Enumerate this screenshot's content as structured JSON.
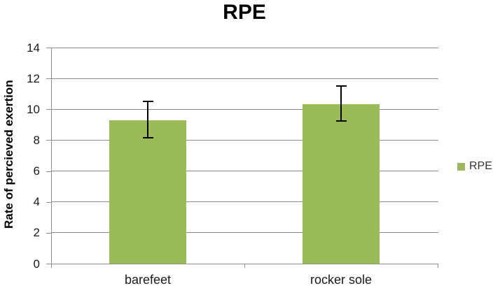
{
  "chart_data": {
    "type": "bar",
    "title": "RPE",
    "ylabel": "Rate of percieved exertion",
    "xlabel": "",
    "categories": [
      "barefeet",
      "rocker sole"
    ],
    "series": [
      {
        "name": "RPE",
        "values": [
          9.3,
          10.35
        ],
        "error_low": [
          8.1,
          9.2
        ],
        "error_high": [
          10.55,
          11.55
        ]
      }
    ],
    "ylim": [
      0,
      14
    ],
    "ytick_step": 2,
    "ytick_labels": [
      "0",
      "2",
      "4",
      "6",
      "8",
      "10",
      "12",
      "14"
    ],
    "grid": "horizontal-only",
    "legend": {
      "position": "right",
      "entries": [
        {
          "label": "RPE",
          "swatch_color": "#9BBB59"
        }
      ]
    },
    "colors": {
      "bar": "#9BBB59",
      "gridline": "#8E8E8E",
      "axis": "#8E8E8E",
      "error_bar": "#000000",
      "title_text": "#000000",
      "tick_text": "#1a1a1a"
    }
  }
}
